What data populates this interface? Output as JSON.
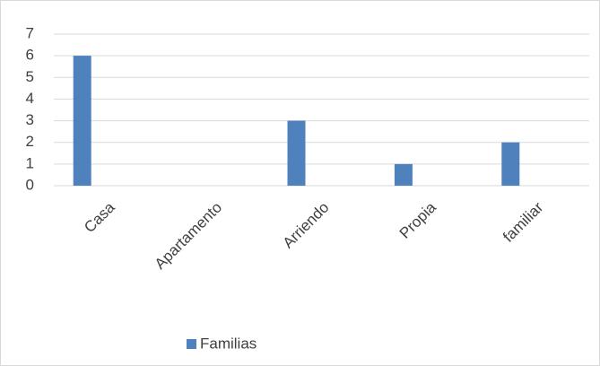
{
  "chart_data": {
    "type": "bar",
    "categories": [
      "Casa",
      "Apartamento",
      "Arriendo",
      "Propia",
      "familiar"
    ],
    "series": [
      {
        "name": "Familias",
        "color": "#4f81bd",
        "values": [
          6,
          0,
          3,
          1,
          2
        ]
      }
    ],
    "ylim": [
      0,
      7
    ],
    "yticks": [
      0,
      1,
      2,
      3,
      4,
      5,
      6,
      7
    ],
    "grid": true,
    "legend": "bottom"
  }
}
